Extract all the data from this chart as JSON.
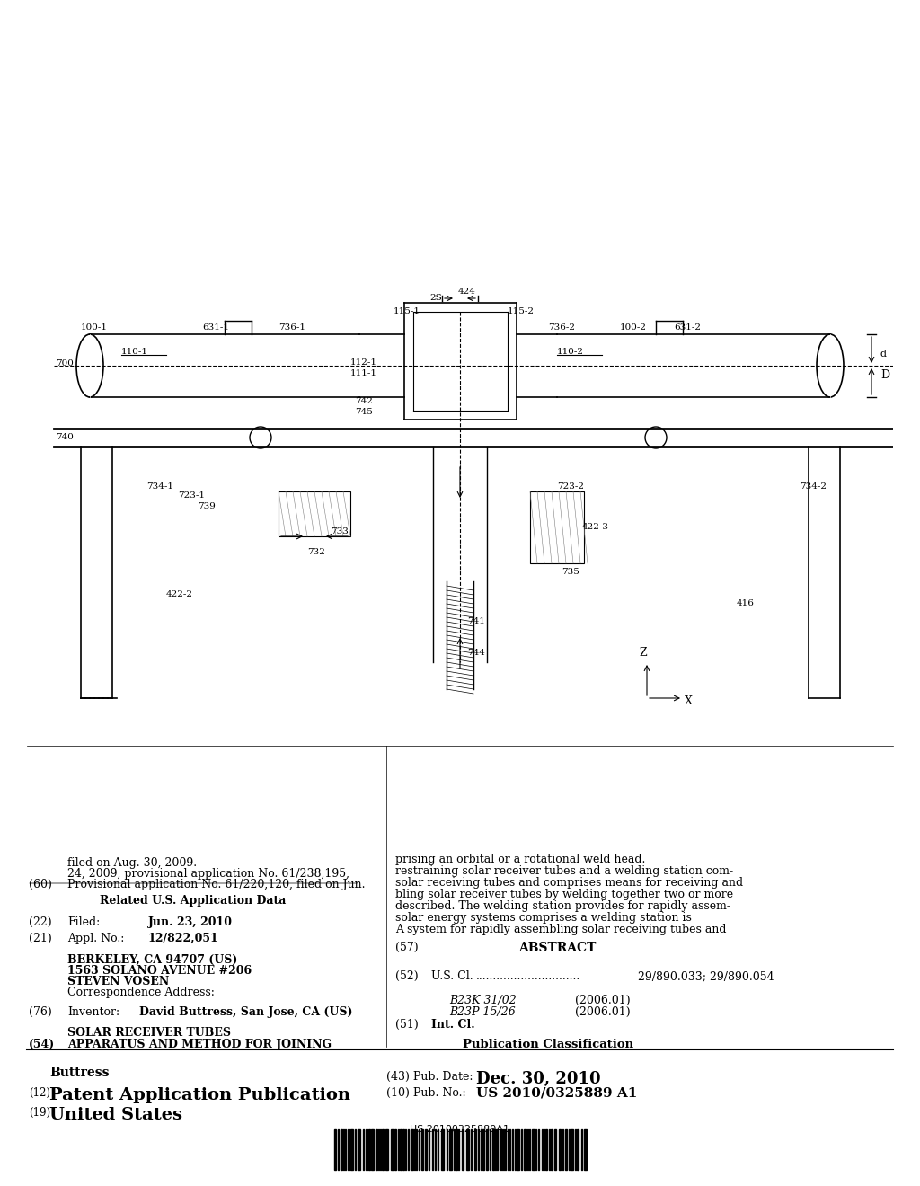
{
  "bg_color": "#ffffff",
  "barcode_text": "US 20100325889A1",
  "title_19": "(19)",
  "title_19_text": "United States",
  "title_12": "(12)",
  "title_12_text": "Patent Application Publication",
  "title_buttress": "Buttress",
  "pub_no_label": "(10) Pub. No.:",
  "pub_no_value": "US 2010/0325889 A1",
  "pub_date_label": "(43) Pub. Date:",
  "pub_date_value": "Dec. 30, 2010",
  "field54_label": "(54)",
  "field54_text": "APPARATUS AND METHOD FOR JOINING\nSOLAR RECEIVER TUBES",
  "field76_label": "(76)",
  "field76_key": "Inventor:",
  "field76_value": "David Buttress, San Jose, CA (US)",
  "corr_label": "Correspondence Address:",
  "corr_name": "STEVEN VOSEN",
  "corr_addr1": "1563 SOLANO AVENUE #206",
  "corr_addr2": "BERKELEY, CA 94707 (US)",
  "field21_label": "(21)",
  "field21_key": "Appl. No.:",
  "field21_value": "12/822,051",
  "field22_label": "(22)",
  "field22_key": "Filed:",
  "field22_value": "Jun. 23, 2010",
  "related_title": "Related U.S. Application Data",
  "field60_label": "(60)",
  "field60_text": "Provisional application No. 61/220,120, filed on Jun.\n24, 2009, provisional application No. 61/238,195,\nfiled on Aug. 30, 2009.",
  "pub_class_title": "Publication Classification",
  "field51_label": "(51)",
  "field51_key": "Int. Cl.",
  "field51_b23p": "B23P 15/26",
  "field51_b23p_year": "(2006.01)",
  "field51_b23k": "B23K 31/02",
  "field51_b23k_year": "(2006.01)",
  "field52_label": "(52)",
  "field52_key": "U.S. Cl.",
  "field52_value": "29/890.033; 29/890.054",
  "field57_label": "(57)",
  "field57_title": "ABSTRACT",
  "abstract_text": "A system for rapidly assembling solar receiving tubes and solar energy systems comprises a welding station is described. The welding station provides for rapidly assembling solar receiver tubes by welding together two or more solar receiving tubes and comprises means for receiving and restraining solar receiver tubes and a welding station comprising an orbital or a rotational weld head."
}
